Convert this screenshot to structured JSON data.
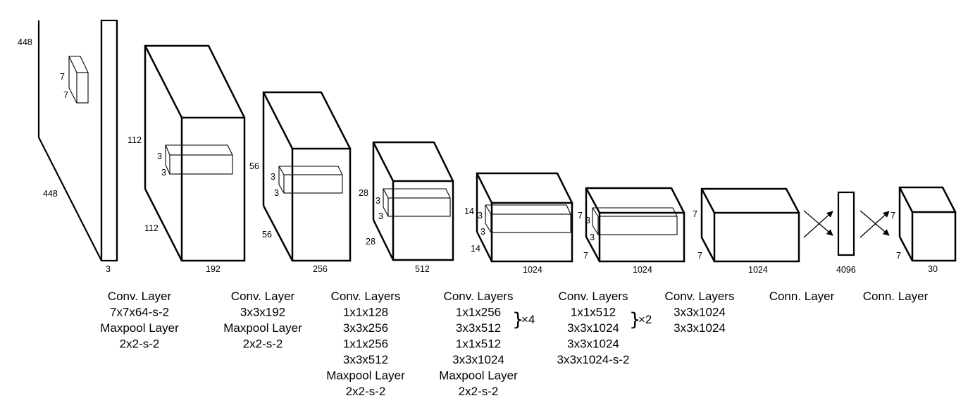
{
  "layers": [
    {
      "dims": [
        "448",
        "7",
        "7",
        "448",
        "3"
      ]
    },
    {
      "dims": [
        "112",
        "3",
        "3",
        "112",
        "192"
      ]
    },
    {
      "dims": [
        "56",
        "3",
        "3",
        "56",
        "256"
      ]
    },
    {
      "dims": [
        "28",
        "3",
        "3",
        "28",
        "512"
      ]
    },
    {
      "dims": [
        "14",
        "3",
        "3",
        "14",
        "1024"
      ]
    },
    {
      "dims": [
        "7",
        "3",
        "3",
        "7",
        "1024"
      ]
    },
    {
      "dims": [
        "7",
        "7",
        "1024"
      ]
    },
    {
      "dims": [
        "4096"
      ]
    },
    {
      "dims": [
        "7",
        "7",
        "30"
      ]
    }
  ],
  "captions": [
    {
      "lines": [
        "Conv. Layer",
        "7x7x64-s-2",
        "Maxpool Layer",
        "2x2-s-2"
      ]
    },
    {
      "lines": [
        "Conv. Layer",
        "3x3x192",
        "Maxpool Layer",
        "2x2-s-2"
      ]
    },
    {
      "lines": [
        "Conv. Layers",
        "1x1x128",
        "3x3x256",
        "1x1x256",
        "3x3x512",
        "Maxpool Layer",
        "2x2-s-2"
      ]
    },
    {
      "lines": [
        "Conv. Layers",
        "1x1x256",
        "3x3x512",
        "1x1x512",
        "3x3x1024",
        "Maxpool Layer",
        "2x2-s-2"
      ],
      "repeat": "×4"
    },
    {
      "lines": [
        "Conv. Layers",
        "1x1x512",
        "3x3x1024",
        "3x3x1024",
        "3x3x1024-s-2"
      ],
      "repeat": "×2"
    },
    {
      "lines": [
        "Conv. Layers",
        "3x3x1024",
        "3x3x1024"
      ]
    },
    {
      "lines": [
        "Conn. Layer"
      ]
    },
    {
      "lines": [
        "Conn. Layer"
      ]
    }
  ]
}
